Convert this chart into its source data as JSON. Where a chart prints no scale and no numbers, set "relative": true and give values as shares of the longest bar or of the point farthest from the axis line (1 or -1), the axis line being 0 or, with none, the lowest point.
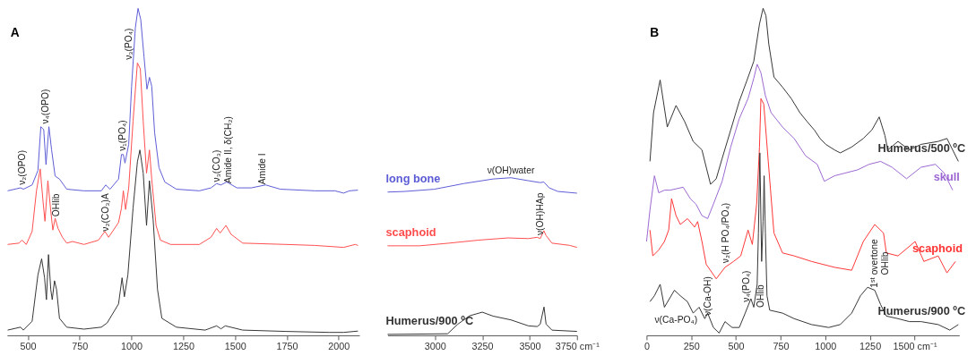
{
  "chart_data": [
    {
      "type": "line",
      "title": "A",
      "relative": true,
      "tick_labels": "x",
      "xlim": [
        400,
        2100
      ],
      "xticks": [
        500,
        750,
        1000,
        1250,
        1500,
        1750,
        2000
      ],
      "series": [
        {
          "color": "#5b5bd6",
          "x": [
            403,
            465,
            479,
            521,
            549,
            563,
            577,
            588,
            602,
            615,
            632,
            653,
            688,
            771,
            855,
            876,
            897,
            938,
            952,
            961,
            969,
            987,
            1001,
            1019,
            1032,
            1045,
            1061,
            1075,
            1087,
            1098,
            1112,
            1133,
            1161,
            1217,
            1328,
            1384,
            1411,
            1432,
            1460,
            1509,
            1578,
            1648,
            1718,
            1885,
            1982,
            2024,
            2052,
            2093
          ],
          "values": [
            0.442,
            0.451,
            0.447,
            0.46,
            0.504,
            0.638,
            0.629,
            0.522,
            0.638,
            0.567,
            0.487,
            0.478,
            0.447,
            0.442,
            0.442,
            0.46,
            0.447,
            0.478,
            0.553,
            0.553,
            0.527,
            0.584,
            0.762,
            0.94,
            1.0,
            0.966,
            0.851,
            0.753,
            0.789,
            0.762,
            0.62,
            0.513,
            0.469,
            0.447,
            0.442,
            0.451,
            0.464,
            0.46,
            0.469,
            0.451,
            0.451,
            0.46,
            0.447,
            0.442,
            0.442,
            0.435,
            0.442,
            0.444
          ]
        },
        {
          "color": "#ff4d4d",
          "x": [
            403,
            458,
            472,
            493,
            521,
            542,
            560,
            574,
            583,
            597,
            611,
            621,
            632,
            646,
            667,
            688,
            716,
            771,
            841,
            872,
            890,
            938,
            952,
            961,
            972,
            987,
            1008,
            1029,
            1043,
            1057,
            1073,
            1087,
            1098,
            1119,
            1140,
            1189,
            1328,
            1384,
            1411,
            1428,
            1456,
            1481,
            1537,
            1745,
            1885,
            2024,
            2080,
            2093
          ],
          "values": [
            0.278,
            0.282,
            0.291,
            0.278,
            0.318,
            0.442,
            0.509,
            0.407,
            0.349,
            0.473,
            0.38,
            0.322,
            0.358,
            0.327,
            0.3,
            0.282,
            0.287,
            0.278,
            0.291,
            0.318,
            0.3,
            0.345,
            0.389,
            0.442,
            0.385,
            0.451,
            0.655,
            0.833,
            0.815,
            0.655,
            0.496,
            0.567,
            0.478,
            0.336,
            0.291,
            0.278,
            0.278,
            0.3,
            0.327,
            0.313,
            0.336,
            0.309,
            0.282,
            0.278,
            0.275,
            0.269,
            0.278,
            0.275
          ]
        },
        {
          "color": "#333333",
          "x": [
            403,
            465,
            479,
            521,
            549,
            567,
            581,
            590,
            600,
            611,
            618,
            629,
            639,
            653,
            688,
            771,
            855,
            883,
            938,
            955,
            966,
            983,
            1008,
            1029,
            1041,
            1057,
            1073,
            1087,
            1105,
            1126,
            1147,
            1217,
            1356,
            1411,
            1432,
            1453,
            1537,
            1745,
            1954,
            2024,
            2093
          ],
          "values": [
            0.016,
            0.025,
            0.016,
            0.043,
            0.185,
            0.234,
            0.176,
            0.109,
            0.247,
            0.14,
            0.109,
            0.167,
            0.14,
            0.052,
            0.025,
            0.019,
            0.025,
            0.038,
            0.096,
            0.176,
            0.118,
            0.185,
            0.389,
            0.531,
            0.567,
            0.496,
            0.336,
            0.473,
            0.353,
            0.14,
            0.052,
            0.025,
            0.016,
            0.029,
            0.02,
            0.029,
            0.016,
            0.012,
            0.009,
            0.009,
            0.013
          ]
        }
      ],
      "annotations": [
        "ν₂(OPO)",
        "ν₄(OPO)",
        "OHlib",
        "ν₂(CO₃)A",
        "ν₁(PO₄)",
        "ν₃(PO₄)",
        "ν₃(CO₃)",
        "Amide II, δ(CH₂)",
        "Amide I"
      ]
    },
    {
      "type": "line",
      "relative": true,
      "tick_labels": "x",
      "xlim": [
        2750,
        3750
      ],
      "xticks": [
        3000,
        3250,
        3500,
        {
          "value": 3750,
          "label": "3750 cm⁻¹"
        }
      ],
      "series": [
        {
          "name": "long bone",
          "color": "#5b5bd6",
          "x": [
            2750,
            2842,
            2997,
            3152,
            3307,
            3401,
            3494,
            3556,
            3575,
            3603,
            3649,
            3750
          ],
          "values": [
            0.909,
            0.913,
            0.927,
            0.963,
            0.992,
            1.0,
            0.981,
            0.969,
            0.973,
            0.936,
            0.913,
            0.902
          ]
        },
        {
          "name": "scaphoid",
          "color": "#ff4d4d",
          "x": [
            2750,
            2919,
            3075,
            3230,
            3385,
            3494,
            3540,
            3556,
            3575,
            3587,
            3618,
            3711,
            3750
          ],
          "values": [
            0.568,
            0.568,
            0.585,
            0.604,
            0.618,
            0.614,
            0.622,
            0.614,
            0.664,
            0.633,
            0.585,
            0.571,
            0.558
          ]
        },
        {
          "name": "Humerus/900 ºC",
          "color": "#333333",
          "x": [
            2750,
            3067,
            3121,
            3183,
            3250,
            3307,
            3401,
            3494,
            3540,
            3556,
            3576,
            3587,
            3618,
            3750
          ],
          "values": [
            0.006,
            0.01,
            0.071,
            0.124,
            0.147,
            0.122,
            0.098,
            0.06,
            0.056,
            0.071,
            0.18,
            0.071,
            0.033,
            0.025
          ]
        }
      ],
      "annotations": [
        "ν(OH)water",
        "ν(OH)HAp"
      ]
    },
    {
      "type": "line",
      "title": "B",
      "relative": true,
      "tick_labels": "x",
      "xlim": [
        0,
        1750
      ],
      "xticks": [
        0,
        250,
        500,
        750,
        1000,
        1250,
        {
          "value": 1500,
          "label": "1500 cm⁻¹"
        }
      ],
      "series": [
        {
          "name": "Humerus/500 ºC",
          "color": "#333333",
          "x": [
            19,
            39,
            76,
            116,
            165,
            213,
            261,
            310,
            334,
            358,
            390,
            423,
            471,
            519,
            560,
            600,
            632,
            652,
            668,
            684,
            713,
            761,
            810,
            858,
            898,
            939,
            971,
            1003,
            1052,
            1084,
            1148,
            1213,
            1261,
            1302,
            1334,
            1350,
            1407,
            1471,
            1536,
            1632,
            1681,
            1745
          ],
          "values": [
            0.532,
            0.681,
            0.781,
            0.637,
            0.703,
            0.654,
            0.593,
            0.567,
            0.514,
            0.462,
            0.479,
            0.541,
            0.628,
            0.716,
            0.777,
            0.838,
            0.952,
            1.0,
            0.978,
            0.891,
            0.79,
            0.759,
            0.724,
            0.681,
            0.654,
            0.628,
            0.602,
            0.584,
            0.567,
            0.558,
            0.576,
            0.602,
            0.628,
            0.668,
            0.611,
            0.567,
            0.593,
            0.567,
            0.584,
            0.593,
            0.602,
            0.532
          ]
        },
        {
          "name": "skull",
          "color": "#9b66d1",
          "x": [
            0,
            19,
            44,
            68,
            100,
            132,
            205,
            245,
            277,
            310,
            342,
            374,
            423,
            471,
            519,
            568,
            600,
            619,
            640,
            665,
            697,
            761,
            826,
            890,
            955,
            995,
            1052,
            1116,
            1181,
            1245,
            1310,
            1374,
            1455,
            1536,
            1616,
            1665,
            1713
          ],
          "values": [
            0.287,
            0.383,
            0.488,
            0.436,
            0.444,
            0.444,
            0.453,
            0.418,
            0.401,
            0.366,
            0.357,
            0.401,
            0.471,
            0.576,
            0.663,
            0.724,
            0.786,
            0.829,
            0.803,
            0.733,
            0.681,
            0.637,
            0.602,
            0.549,
            0.523,
            0.471,
            0.488,
            0.497,
            0.506,
            0.523,
            0.532,
            0.514,
            0.479,
            0.514,
            0.523,
            0.497,
            0.444
          ]
        },
        {
          "name": "scaphoid",
          "color": "#ff3333",
          "x": [
            19,
            35,
            68,
            100,
            124,
            140,
            165,
            189,
            229,
            269,
            286,
            310,
            334,
            390,
            439,
            487,
            527,
            568,
            592,
            616,
            632,
            640,
            656,
            681,
            713,
            761,
            826,
            923,
            1052,
            1148,
            1213,
            1277,
            1326,
            1342,
            1407,
            1503,
            1552,
            1632,
            1681,
            1729
          ],
          "values": [
            0.322,
            0.243,
            0.261,
            0.287,
            0.322,
            0.418,
            0.366,
            0.339,
            0.357,
            0.331,
            0.348,
            0.287,
            0.217,
            0.173,
            0.208,
            0.226,
            0.243,
            0.322,
            0.278,
            0.401,
            0.576,
            0.724,
            0.707,
            0.532,
            0.313,
            0.252,
            0.243,
            0.226,
            0.208,
            0.199,
            0.287,
            0.339,
            0.313,
            0.252,
            0.243,
            0.287,
            0.226,
            0.243,
            0.191,
            0.226
          ]
        },
        {
          "name": "Humerus/900 ºC",
          "color": "#333333",
          "x": [
            19,
            44,
            76,
            100,
            156,
            189,
            229,
            261,
            294,
            326,
            342,
            374,
            406,
            439,
            479,
            519,
            552,
            584,
            600,
            619,
            626,
            634,
            644,
            652,
            658,
            665,
            674,
            689,
            761,
            826,
            923,
            1019,
            1084,
            1148,
            1197,
            1237,
            1277,
            1310,
            1342,
            1407,
            1471,
            1536,
            1632,
            1697,
            1745
          ],
          "values": [
            0.103,
            0.121,
            0.156,
            0.086,
            0.138,
            0.121,
            0.103,
            0.068,
            0.086,
            0.051,
            0.068,
            0.024,
            0.007,
            0.042,
            0.024,
            0.024,
            0.068,
            0.112,
            0.086,
            0.156,
            0.313,
            0.558,
            0.226,
            0.348,
            0.488,
            0.313,
            0.121,
            0.077,
            0.068,
            0.051,
            0.033,
            0.024,
            0.033,
            0.068,
            0.121,
            0.147,
            0.138,
            0.094,
            0.059,
            0.051,
            0.042,
            0.042,
            0.033,
            0.016,
            0.033
          ]
        }
      ],
      "annotations": [
        "ν(Ca-PO₄)",
        "ν(Ca-OH)",
        "ν₂(H PO₄/PO₄)",
        "ν₄(PO₄)",
        "OHlib",
        "1ˢᵗ overtone\nOHlib"
      ]
    }
  ]
}
